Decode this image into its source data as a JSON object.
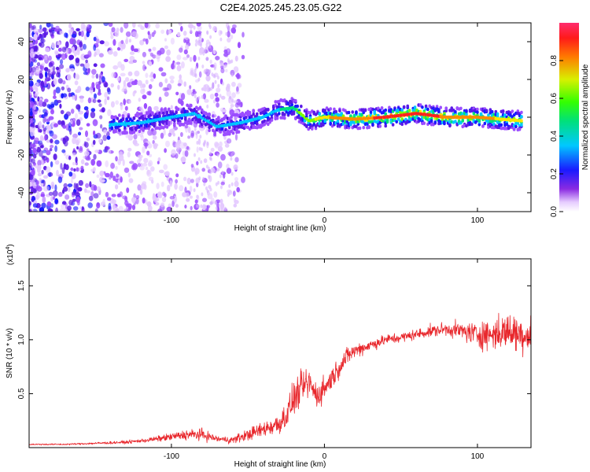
{
  "title": "C2E4.2025.245.23.05.G22",
  "chart_data": [
    {
      "type": "heatmap",
      "xlabel": "Height of straight line (km)",
      "ylabel": "Frequency (Hz)",
      "xlim": [
        -193,
        135
      ],
      "ylim": [
        -50,
        50
      ],
      "xticks": [
        -100,
        0,
        100
      ],
      "yticks": [
        -40,
        -20,
        0,
        20,
        40
      ],
      "colorbar": {
        "label": "Normalized spectral amplitude",
        "range": [
          0,
          1
        ],
        "ticks": [
          0.0,
          0.2,
          0.4,
          0.6,
          0.8
        ]
      },
      "ridge": [
        {
          "x": -140,
          "y": -4,
          "amp": 0.45
        },
        {
          "x": -120,
          "y": -3,
          "amp": 0.45
        },
        {
          "x": -100,
          "y": 0,
          "amp": 0.4
        },
        {
          "x": -85,
          "y": 2,
          "amp": 0.4
        },
        {
          "x": -70,
          "y": -5,
          "amp": 0.4
        },
        {
          "x": -55,
          "y": -3,
          "amp": 0.4
        },
        {
          "x": -40,
          "y": 0,
          "amp": 0.45
        },
        {
          "x": -30,
          "y": 4,
          "amp": 0.45
        },
        {
          "x": -20,
          "y": 5,
          "amp": 0.55
        },
        {
          "x": -10,
          "y": -2,
          "amp": 0.6
        },
        {
          "x": 0,
          "y": 0,
          "amp": 0.75
        },
        {
          "x": 20,
          "y": -1,
          "amp": 0.8
        },
        {
          "x": 40,
          "y": 0,
          "amp": 0.9
        },
        {
          "x": 60,
          "y": 2,
          "amp": 0.9
        },
        {
          "x": 80,
          "y": 0,
          "amp": 0.85
        },
        {
          "x": 100,
          "y": 0,
          "amp": 0.8
        },
        {
          "x": 115,
          "y": -1,
          "amp": 0.75
        },
        {
          "x": 130,
          "y": -2,
          "amp": 0.7
        }
      ]
    },
    {
      "type": "line",
      "xlabel": "Height of straight line (km)",
      "ylabel": "SNR (10 * v/v)",
      "yscale_label": "(x10",
      "yscale_exp": "4",
      "yscale_close": ")",
      "xlim": [
        -193,
        135
      ],
      "ylim": [
        0,
        1.75
      ],
      "xticks": [
        -100,
        0,
        100
      ],
      "yticks": [
        0.5,
        1.0,
        1.5
      ],
      "series": [
        {
          "color": "#e8262b",
          "x": [
            -193,
            -170,
            -150,
            -130,
            -115,
            -100,
            -90,
            -80,
            -70,
            -60,
            -50,
            -40,
            -30,
            -25,
            -20,
            -15,
            -10,
            -5,
            0,
            5,
            10,
            15,
            20,
            30,
            40,
            50,
            60,
            70,
            80,
            90,
            100,
            110,
            120,
            130,
            135
          ],
          "y": [
            0.03,
            0.03,
            0.04,
            0.05,
            0.07,
            0.1,
            0.12,
            0.12,
            0.08,
            0.07,
            0.12,
            0.17,
            0.22,
            0.3,
            0.45,
            0.55,
            0.6,
            0.48,
            0.55,
            0.65,
            0.75,
            0.85,
            0.9,
            0.95,
            1.0,
            1.02,
            1.05,
            1.08,
            1.1,
            1.08,
            1.05,
            1.05,
            1.08,
            1.05,
            1.05
          ],
          "noise": [
            0.01,
            0.01,
            0.015,
            0.02,
            0.03,
            0.05,
            0.07,
            0.08,
            0.04,
            0.05,
            0.08,
            0.1,
            0.15,
            0.2,
            0.22,
            0.22,
            0.2,
            0.18,
            0.18,
            0.15,
            0.13,
            0.12,
            0.1,
            0.08,
            0.07,
            0.07,
            0.07,
            0.08,
            0.09,
            0.12,
            0.18,
            0.22,
            0.25,
            0.25,
            0.25
          ]
        }
      ]
    }
  ]
}
